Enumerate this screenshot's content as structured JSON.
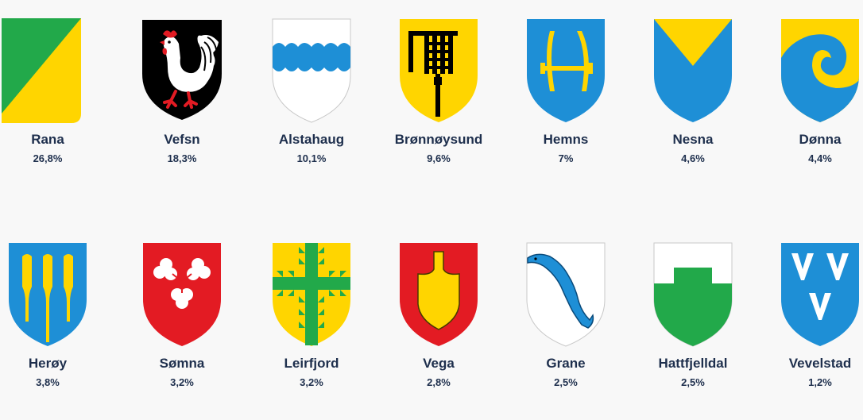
{
  "colors": {
    "blue": "#1e8fd6",
    "yellow": "#ffd500",
    "green": "#22a94a",
    "red": "#e31b23",
    "black": "#000000",
    "white": "#ffffff",
    "text": "#1e2f4d"
  },
  "municipalities": [
    {
      "name": "Rana",
      "share": "26,8%",
      "icon": "rana-coat-of-arms-icon"
    },
    {
      "name": "Vefsn",
      "share": "18,3%",
      "icon": "vefsn-coat-of-arms-icon"
    },
    {
      "name": "Alstahaug",
      "share": "10,1%",
      "icon": "alstahaug-coat-of-arms-icon"
    },
    {
      "name": "Brønnøysund",
      "share": "9,6%",
      "icon": "bronnoysund-coat-of-arms-icon"
    },
    {
      "name": "Hemns",
      "share": "7%",
      "icon": "hemnes-coat-of-arms-icon"
    },
    {
      "name": "Nesna",
      "share": "4,6%",
      "icon": "nesna-coat-of-arms-icon"
    },
    {
      "name": "Dønna",
      "share": "4,4%",
      "icon": "donna-coat-of-arms-icon"
    },
    {
      "name": "Herøy",
      "share": "3,8%",
      "icon": "heroy-coat-of-arms-icon"
    },
    {
      "name": "Sømna",
      "share": "3,2%",
      "icon": "somna-coat-of-arms-icon"
    },
    {
      "name": "Leirfjord",
      "share": "3,2%",
      "icon": "leirfjord-coat-of-arms-icon"
    },
    {
      "name": "Vega",
      "share": "2,8%",
      "icon": "vega-coat-of-arms-icon"
    },
    {
      "name": "Grane",
      "share": "2,5%",
      "icon": "grane-coat-of-arms-icon"
    },
    {
      "name": "Hattfjelldal",
      "share": "2,5%",
      "icon": "hattfjelldal-coat-of-arms-icon"
    },
    {
      "name": "Vevelstad",
      "share": "1,2%",
      "icon": "vevelstad-coat-of-arms-icon"
    }
  ]
}
